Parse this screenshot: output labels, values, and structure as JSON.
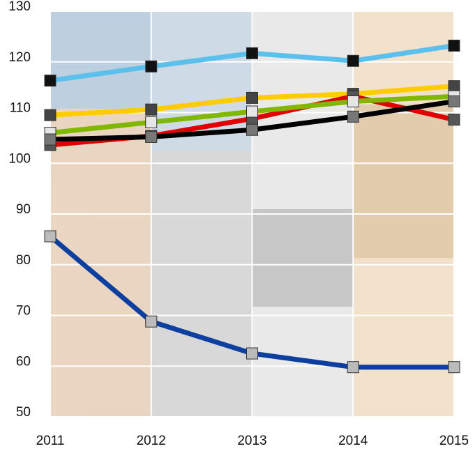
{
  "chart_data": {
    "type": "line",
    "x": [
      2011,
      2012,
      2013,
      2014,
      2015
    ],
    "xlim": [
      2011,
      2015
    ],
    "xticks": [
      2011,
      2012,
      2013,
      2014,
      2015
    ],
    "ylim": [
      50,
      130
    ],
    "yticks": [
      50,
      60,
      70,
      80,
      90,
      100,
      110,
      120,
      130
    ],
    "grid": true,
    "series": [
      {
        "color": "#5bc0eb",
        "marker_color": "#111111",
        "values": [
          116.3,
          119.1,
          121.7,
          120.2,
          123.2
        ]
      },
      {
        "color": "#ffcc00",
        "marker_color": "#444444",
        "values": [
          109.5,
          110.6,
          112.9,
          113.7,
          115.2
        ]
      },
      {
        "color": "#e00000",
        "marker_color": "#555555",
        "values": [
          103.6,
          105.4,
          108.8,
          113.2,
          108.6
        ]
      },
      {
        "color": "#80b800",
        "marker_color": "#e6e6e6",
        "values": [
          106,
          108.1,
          110.2,
          112.2,
          113.2
        ]
      },
      {
        "color": "#000000",
        "marker_color": "#777777",
        "values": [
          104.7,
          105.2,
          106.6,
          109.2,
          112.2
        ]
      },
      {
        "color": "#0d3fa0",
        "marker_color": "#bbbbbb",
        "values": [
          85.6,
          68.8,
          62.5,
          59.8,
          59.8
        ]
      }
    ]
  }
}
